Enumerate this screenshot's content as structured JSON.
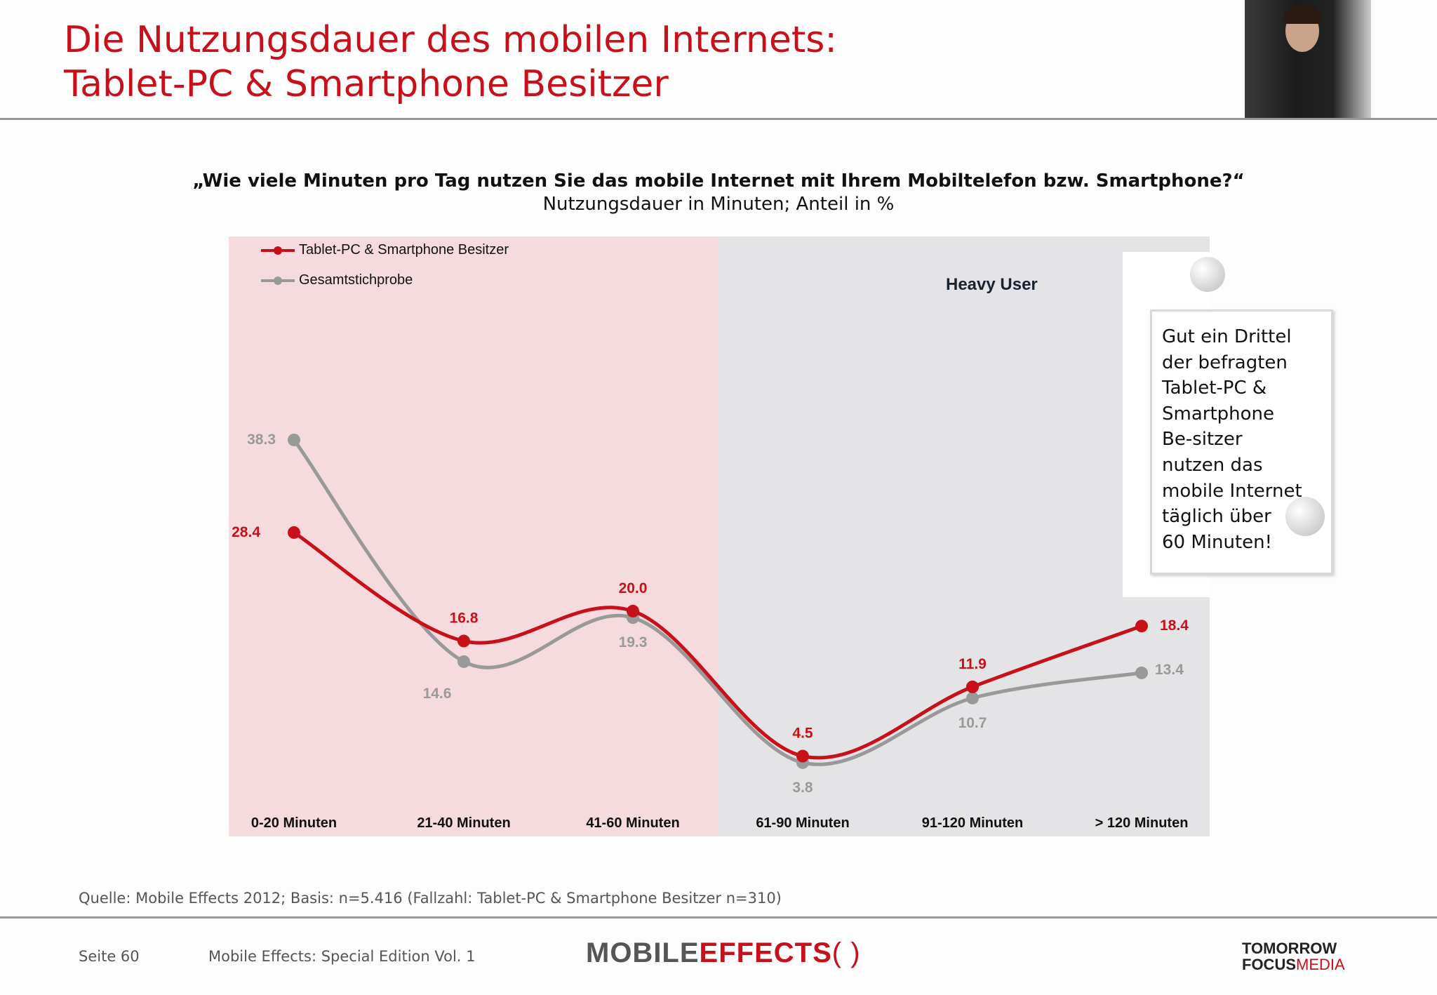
{
  "header": {
    "title_line1": "Die Nutzungsdauer des mobilen Internets:",
    "title_line2": "Tablet-PC & Smartphone Besitzer"
  },
  "question": "„Wie viele Minuten pro Tag nutzen Sie das mobile Internet mit Ihrem Mobiltelefon bzw. Smartphone?“",
  "subtitle": "Nutzungsdauer in Minuten; Anteil in %",
  "heavy_user": "Heavy User",
  "callout": [
    "Gut ein Drittel",
    "der befragten",
    "Tablet-PC &",
    "Smartphone",
    "Be-sitzer",
    "nutzen das",
    "mobile Internet",
    "täglich über",
    "60 Minuten!"
  ],
  "colors": {
    "red": "#c8101a",
    "grey": "#999999",
    "pink_bg": "#f5dbde",
    "grey_bg": "#e4e4e6"
  },
  "chart_data": {
    "type": "line",
    "categories": [
      "0-20 Minuten",
      "21-40 Minuten",
      "41-60 Minuten",
      "61-90 Minuten",
      "91-120 Minuten",
      "> 120 Minuten"
    ],
    "series": [
      {
        "name": "Tablet-PC & Smartphone Besitzer",
        "color": "#c8101a",
        "values": [
          28.4,
          16.8,
          20.0,
          4.5,
          11.9,
          18.4
        ],
        "labels": [
          "28.4",
          "16.8",
          "20.0",
          "4.5",
          "11.9",
          "18.4"
        ]
      },
      {
        "name": "Gesamtstichprobe",
        "color": "#999999",
        "values": [
          38.3,
          14.6,
          19.3,
          3.8,
          10.7,
          13.4
        ],
        "labels": [
          "38.3",
          "14.6",
          "19.3",
          "3.8",
          "10.7",
          "13.4"
        ]
      }
    ],
    "legend": "top-left",
    "grid": false,
    "shaded_regions": [
      {
        "from": "0-20 Minuten",
        "to": "41-60 Minuten",
        "color": "#f5dbde"
      },
      {
        "from": "61-90 Minuten",
        "to": "> 120 Minuten",
        "color": "#e4e4e6",
        "label": "Heavy User"
      }
    ]
  },
  "footer": {
    "source": "Quelle: Mobile Effects 2012; Basis: n=5.416 (Fallzahl: Tablet-PC & Smartphone Besitzer n=310)",
    "page": "Seite 60",
    "edition": "Mobile Effects: Special Edition Vol. 1",
    "logo_mobile": "MOBILE",
    "logo_effects": "EFFECTS",
    "logo_tf1": "TOMORROW",
    "logo_tf2": "FOCUS",
    "logo_tf3": "MEDIA"
  }
}
